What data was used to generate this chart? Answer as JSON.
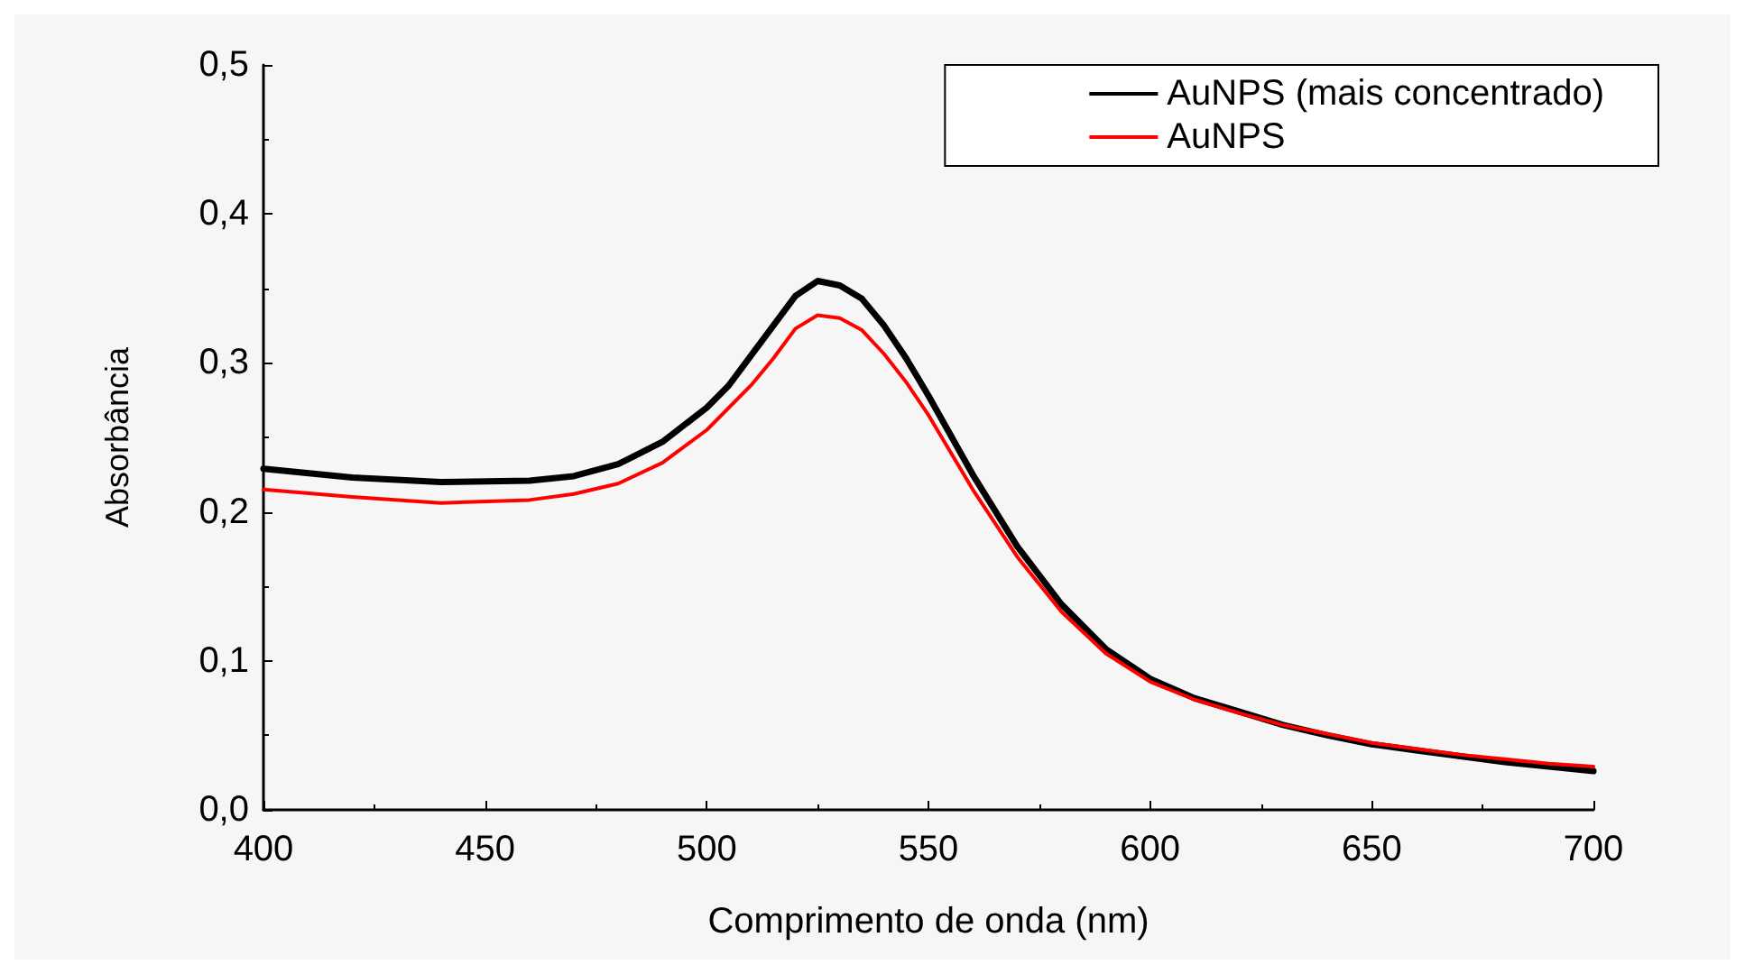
{
  "chart_data": {
    "type": "line",
    "xlabel": "Comprimento de onda (nm)",
    "ylabel": "Absorbância",
    "xlim": [
      400,
      700
    ],
    "xticks": [
      400,
      450,
      500,
      550,
      600,
      650,
      700
    ],
    "ylim": [
      0,
      0.5
    ],
    "yticks": [
      {
        "value": 0,
        "label": "0,0"
      },
      {
        "value": 0.1,
        "label": "0,1"
      },
      {
        "value": 0.2,
        "label": "0,2"
      },
      {
        "value": 0.3,
        "label": "0,3"
      },
      {
        "value": 0.4,
        "label": "0,4"
      },
      {
        "value": 0.5,
        "label": "0,5"
      }
    ],
    "grid": false,
    "legend": "top right",
    "marker": "none",
    "line_style": "solid",
    "series": [
      {
        "name": "AuNPS (mais concentrado)",
        "color": "#000000",
        "x": [
          400,
          420,
          440,
          460,
          470,
          480,
          490,
          500,
          505,
          510,
          515,
          520,
          525,
          530,
          535,
          540,
          545,
          550,
          560,
          570,
          580,
          590,
          600,
          610,
          620,
          630,
          640,
          650,
          660,
          670,
          680,
          690,
          700
        ],
        "values": [
          0.229,
          0.223,
          0.22,
          0.221,
          0.224,
          0.232,
          0.247,
          0.27,
          0.285,
          0.305,
          0.325,
          0.345,
          0.355,
          0.352,
          0.343,
          0.325,
          0.303,
          0.278,
          0.225,
          0.177,
          0.138,
          0.108,
          0.088,
          0.075,
          0.066,
          0.057,
          0.05,
          0.044,
          0.04,
          0.036,
          0.032,
          0.029,
          0.026
        ]
      },
      {
        "name": "AuNPS",
        "color": "#ff0000",
        "x": [
          400,
          420,
          440,
          460,
          470,
          480,
          490,
          500,
          510,
          515,
          520,
          525,
          530,
          535,
          540,
          545,
          550,
          560,
          570,
          580,
          590,
          600,
          610,
          620,
          630,
          640,
          650,
          660,
          670,
          680,
          690,
          700
        ],
        "values": [
          0.215,
          0.21,
          0.206,
          0.208,
          0.212,
          0.219,
          0.233,
          0.255,
          0.285,
          0.303,
          0.323,
          0.332,
          0.33,
          0.322,
          0.306,
          0.287,
          0.265,
          0.215,
          0.17,
          0.133,
          0.105,
          0.086,
          0.074,
          0.065,
          0.057,
          0.051,
          0.045,
          0.041,
          0.037,
          0.034,
          0.031,
          0.029
        ]
      }
    ]
  }
}
